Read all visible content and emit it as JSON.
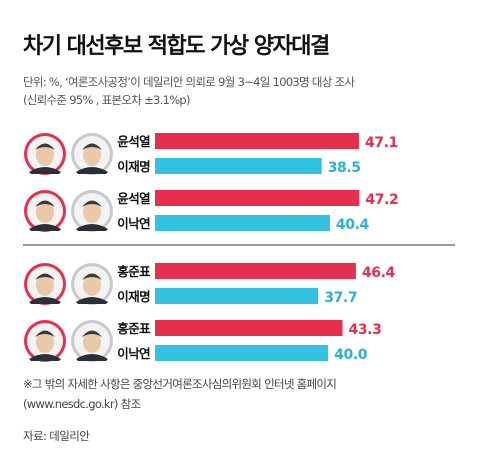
{
  "header": {
    "title": "차기 대선후보 적합도 가상 양자대결",
    "subtitle_line1": "단위: %, ‘여론조사공정’이 데일리안 의뢰로 9월 3~4일 1003명 대상 조사",
    "subtitle_line2": "(신뢰수준 95% , 표본오차 ±3.1%p)"
  },
  "colors": {
    "red_bar": "#e62f4f",
    "blue_bar": "#33c2df",
    "red_label": "#e62f4f",
    "blue_label": "#2ab3d3",
    "avatar_red_ring": "#e62f4f",
    "avatar_gray_ring": "#c9c9c9",
    "divider": "#333333"
  },
  "chart_data": {
    "type": "bar",
    "orientation": "horizontal",
    "title": "차기 대선후보 적합도 가상 양자대결",
    "unit": "%",
    "groups": [
      {
        "matchup": [
          {
            "name": "윤석열",
            "value": 47.1,
            "color": "red"
          },
          {
            "name": "이재명",
            "value": 38.5,
            "color": "blue"
          }
        ]
      },
      {
        "matchup": [
          {
            "name": "윤석열",
            "value": 47.2,
            "color": "red"
          },
          {
            "name": "이낙연",
            "value": 40.4,
            "color": "blue"
          }
        ]
      },
      {
        "matchup": [
          {
            "name": "홍준표",
            "value": 46.4,
            "color": "red"
          },
          {
            "name": "이재명",
            "value": 37.7,
            "color": "blue"
          }
        ]
      },
      {
        "matchup": [
          {
            "name": "홍준표",
            "value": 43.3,
            "color": "red"
          },
          {
            "name": "이낙연",
            "value": 40.0,
            "color": "blue"
          }
        ]
      }
    ]
  },
  "footer": {
    "note_line1": "※그 밖의 자세한 사항은 중앙선거여론조사심의위원회 인터넷 홈페이지",
    "note_line2": "(www.nesdc.go.kr) 참조",
    "source": "자료: 데일리안"
  }
}
